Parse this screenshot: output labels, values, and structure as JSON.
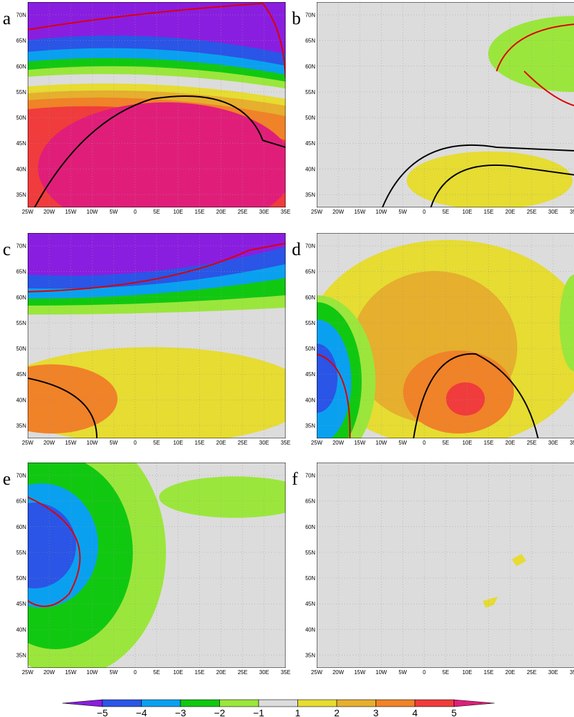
{
  "panels": [
    {
      "label": "a"
    },
    {
      "label": "b"
    },
    {
      "label": "c"
    },
    {
      "label": "d"
    },
    {
      "label": "e"
    },
    {
      "label": "f"
    }
  ],
  "x_tick_labels": [
    "25W",
    "20W",
    "15W",
    "10W",
    "5W",
    "0",
    "5E",
    "10E",
    "15E",
    "20E",
    "25E",
    "30E",
    "35E"
  ],
  "y_tick_labels": [
    "35N",
    "40N",
    "45N",
    "50N",
    "55N",
    "60N",
    "65N",
    "70N"
  ],
  "colorbar": {
    "labels": [
      "−5",
      "−4",
      "−3",
      "−2",
      "−1",
      "1",
      "2",
      "3",
      "4",
      "5"
    ],
    "colors": [
      "#8a1ee0",
      "#2a55e6",
      "#0aa0f0",
      "#11c811",
      "#9be63c",
      "#dcdcdc",
      "#e6dc32",
      "#e6af2d",
      "#f08228",
      "#f03c3c",
      "#e01e7a"
    ]
  }
}
